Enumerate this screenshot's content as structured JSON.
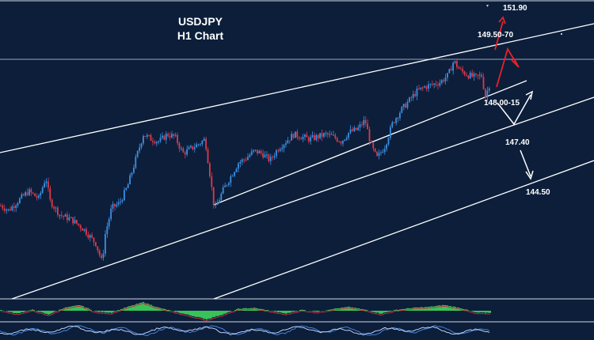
{
  "chart_data": {
    "type": "candlestick",
    "title": "USDJPY",
    "subtitle": "H1 Chart",
    "levels": [
      "151.90",
      "149.50-70",
      "148.00-15",
      "147.40",
      "144.50"
    ],
    "price_path": [
      [
        0,
        146.95
      ],
      [
        10,
        146.85
      ],
      [
        22,
        147.05
      ],
      [
        35,
        147.25
      ],
      [
        48,
        147.1
      ],
      [
        57,
        147.55
      ],
      [
        62,
        147.05
      ],
      [
        75,
        146.75
      ],
      [
        90,
        146.65
      ],
      [
        105,
        146.45
      ],
      [
        120,
        146.15
      ],
      [
        128,
        145.75
      ],
      [
        132,
        146.35
      ],
      [
        140,
        146.9
      ],
      [
        150,
        147.0
      ],
      [
        160,
        147.35
      ],
      [
        170,
        147.9
      ],
      [
        180,
        148.45
      ],
      [
        190,
        148.35
      ],
      [
        200,
        148.3
      ],
      [
        210,
        148.45
      ],
      [
        220,
        148.4
      ],
      [
        230,
        148.05
      ],
      [
        240,
        148.15
      ],
      [
        250,
        148.25
      ],
      [
        258,
        148.35
      ],
      [
        265,
        147.5
      ],
      [
        270,
        146.85
      ],
      [
        280,
        147.25
      ],
      [
        290,
        147.55
      ],
      [
        300,
        147.85
      ],
      [
        310,
        147.95
      ],
      [
        320,
        148.1
      ],
      [
        330,
        148.05
      ],
      [
        340,
        147.9
      ],
      [
        350,
        148.15
      ],
      [
        360,
        148.3
      ],
      [
        370,
        148.45
      ],
      [
        380,
        148.4
      ],
      [
        390,
        148.35
      ],
      [
        400,
        148.4
      ],
      [
        410,
        148.45
      ],
      [
        420,
        148.4
      ],
      [
        430,
        148.3
      ],
      [
        440,
        148.5
      ],
      [
        450,
        148.55
      ],
      [
        460,
        148.75
      ],
      [
        468,
        148.2
      ],
      [
        475,
        147.95
      ],
      [
        485,
        148.2
      ],
      [
        495,
        148.7
      ],
      [
        505,
        148.95
      ],
      [
        515,
        149.15
      ],
      [
        525,
        149.35
      ],
      [
        535,
        149.45
      ],
      [
        545,
        149.5
      ],
      [
        555,
        149.55
      ],
      [
        565,
        149.7
      ],
      [
        572,
        150.0
      ],
      [
        580,
        149.8
      ],
      [
        590,
        149.7
      ],
      [
        600,
        149.65
      ],
      [
        607,
        149.7
      ],
      [
        612,
        149.25
      ],
      [
        618,
        149.55
      ]
    ],
    "oscillator": [
      [
        0,
        0.1
      ],
      [
        20,
        -0.3
      ],
      [
        40,
        0.1
      ],
      [
        60,
        -0.4
      ],
      [
        80,
        0.3
      ],
      [
        100,
        0.6
      ],
      [
        120,
        -0.1
      ],
      [
        140,
        -0.2
      ],
      [
        160,
        0.4
      ],
      [
        180,
        0.9
      ],
      [
        200,
        0.3
      ],
      [
        220,
        -0.1
      ],
      [
        240,
        -0.5
      ],
      [
        260,
        -0.9
      ],
      [
        280,
        -0.4
      ],
      [
        300,
        0.2
      ],
      [
        320,
        0.3
      ],
      [
        340,
        0.0
      ],
      [
        360,
        -0.3
      ],
      [
        380,
        0.1
      ],
      [
        400,
        -0.1
      ],
      [
        420,
        0.2
      ],
      [
        440,
        0.4
      ],
      [
        460,
        0.1
      ],
      [
        480,
        -0.3
      ],
      [
        500,
        0.1
      ],
      [
        520,
        0.3
      ],
      [
        540,
        0.4
      ],
      [
        560,
        0.6
      ],
      [
        580,
        0.3
      ],
      [
        600,
        -0.2
      ],
      [
        618,
        -0.2
      ]
    ],
    "colors": {
      "background": "#0c1e3a",
      "bull_candle": "#3d8fe0",
      "bear_candle": "#e0384a",
      "channel_line": "#ffffff",
      "red_arrow": "#e8202a",
      "white_arrow": "#ffffff",
      "oscillator_positive": "#37c25a",
      "oscillator_negative": "#c0303a",
      "stochastic_fast": "#4a8ef0",
      "stochastic_slow": "#cfe0ff"
    }
  }
}
